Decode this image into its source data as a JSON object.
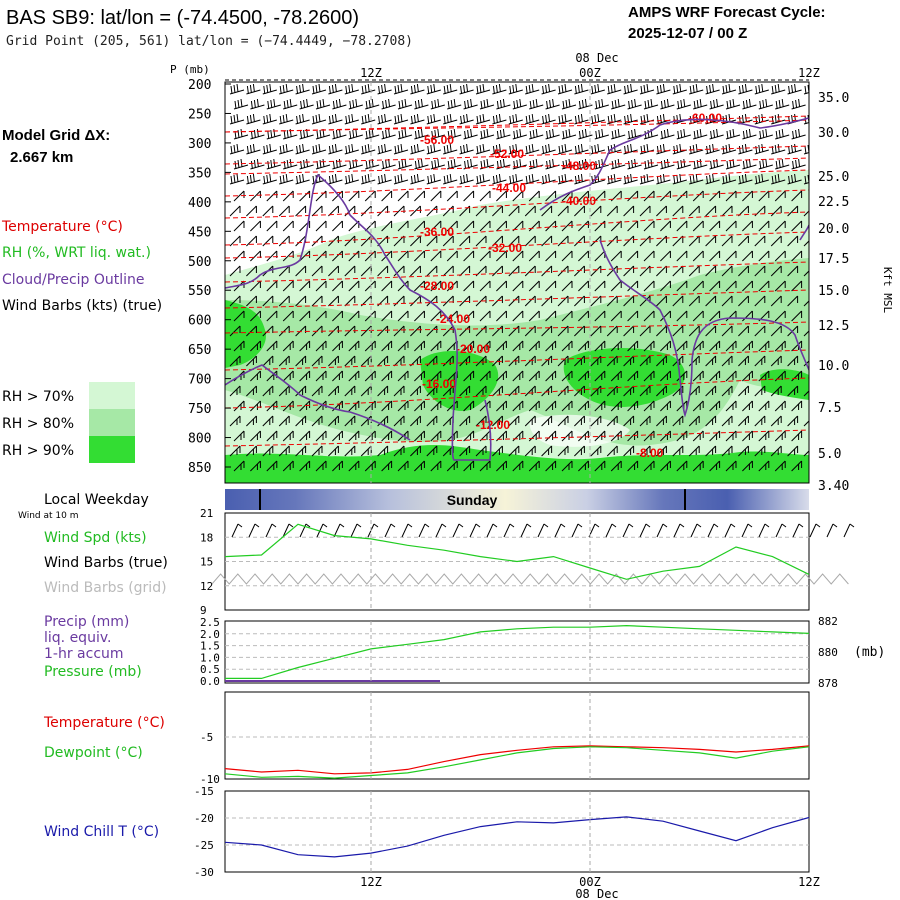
{
  "header": {
    "title": "BAS SB9:  lat/lon = (-74.4500, -78.2600)",
    "grid_point": "Grid Point (205, 561) lat/lon = (−74.4449, −78.2708)",
    "forecast_label": "AMPS WRF Forecast Cycle:",
    "forecast_cycle": "2025-12-07 / 00  Z",
    "model_grid_label": "Model Grid ΔX:",
    "model_grid_value": "2.667 km"
  },
  "legend": {
    "temperature": "Temperature (°C)",
    "rh": "RH (%, WRT liq. wat.)",
    "cloud": "Cloud/Precip Outline",
    "wind": "Wind Barbs (kts) (true)",
    "rh70": "RH > 70%",
    "rh80": "RH > 80%",
    "rh90": "RH > 90%"
  },
  "colors": {
    "temperature": "#ff0000",
    "cloud": "#6a3aa0",
    "rh70": "#d4f7d4",
    "rh80": "#a6e8a6",
    "rh90": "#33dd33",
    "green_line": "#22cc22",
    "wind_chill": "#1a1aaa"
  },
  "time_axis": {
    "top_labels": [
      "12Z",
      "00Z",
      "12Z"
    ],
    "date_label": "08 Dec",
    "bottom_labels": [
      "12Z",
      "00Z",
      "12Z"
    ]
  },
  "weekday": {
    "label": "Local Weekday",
    "sub": "Wind at 10 m",
    "day": "Sunday"
  },
  "chart_data": [
    {
      "type": "line",
      "name": "cross-section",
      "ylabel": "P (mb)",
      "ylabel_right": "Kft MSL",
      "pressure_ticks": [
        "200",
        "250",
        "300",
        "350",
        "400",
        "450",
        "500",
        "550",
        "600",
        "650",
        "700",
        "750",
        "800",
        "850"
      ],
      "height_ticks": [
        "35.0",
        "30.0",
        "25.0",
        "22.5",
        "20.0",
        "17.5",
        "15.0",
        "12.5",
        "10.0",
        "7.5",
        "5.0",
        "3.40"
      ],
      "isotherm_labels": [
        "-60.00",
        "-56.00",
        "-52.00",
        "-48.00",
        "-44.00",
        "-40.00",
        "-36.00",
        "-32.00",
        "-28.00",
        "-24.00",
        "-20.00",
        "-16.00",
        "-12.00",
        "-8.00"
      ]
    },
    {
      "type": "line",
      "name": "wind-panel",
      "labels": [
        "Wind Spd (kts)",
        "Wind Barbs (true)",
        "Wind Barbs (grid)"
      ],
      "y_ticks": [
        "21",
        "18",
        "15",
        "12",
        "9"
      ],
      "ylim": [
        9,
        21
      ],
      "x": [
        0,
        3,
        6,
        9,
        12,
        15,
        18,
        21,
        24,
        27,
        30,
        33,
        36,
        39,
        42,
        45,
        48
      ],
      "values": [
        15.6,
        15.8,
        19.6,
        18.2,
        17.8,
        17.0,
        16.4,
        15.6,
        15.0,
        15.6,
        14.2,
        12.8,
        13.8,
        14.4,
        16.8,
        15.6,
        13.4
      ]
    },
    {
      "type": "line",
      "name": "precip-pressure-panel",
      "labels": [
        "Precip (mm)",
        "liq. equiv.",
        "1-hr accum",
        "Pressure (mb)"
      ],
      "left_ticks": [
        "2.5",
        "2.0",
        "1.5",
        "1.0",
        "0.5",
        "0.0"
      ],
      "right_ticks": [
        "882",
        "880",
        "878"
      ],
      "right_unit": "(mb)",
      "ylim": [
        878,
        882
      ],
      "x": [
        0,
        3,
        6,
        9,
        12,
        15,
        18,
        21,
        24,
        27,
        30,
        33,
        36,
        39,
        42,
        45,
        48
      ],
      "series": [
        {
          "values": [
            878.3,
            878.3,
            879.0,
            879.6,
            880.2,
            880.5,
            880.8,
            881.3,
            881.5,
            881.6,
            881.6,
            881.7,
            881.6,
            881.5,
            881.4,
            881.3,
            881.2
          ]
        }
      ]
    },
    {
      "type": "line",
      "name": "temperature-panel",
      "labels": [
        "Temperature (°C)",
        "Dewpoint (°C)"
      ],
      "y_ticks": [
        "-5",
        "-10"
      ],
      "ylim": [
        -10,
        0
      ],
      "x": [
        0,
        3,
        6,
        9,
        12,
        15,
        18,
        21,
        24,
        27,
        30,
        33,
        36,
        39,
        42,
        45,
        48
      ],
      "series": [
        {
          "values": [
            -8.8,
            -9.2,
            -9.0,
            -9.4,
            -9.3,
            -8.9,
            -8.0,
            -7.2,
            -6.7,
            -6.3,
            -6.2,
            -6.3,
            -6.4,
            -6.6,
            -6.9,
            -6.6,
            -6.2
          ]
        },
        {
          "values": [
            -9.4,
            -9.8,
            -9.7,
            -9.9,
            -9.6,
            -9.3,
            -8.6,
            -7.8,
            -7.0,
            -6.5,
            -6.3,
            -6.4,
            -6.7,
            -7.0,
            -7.6,
            -6.8,
            -6.3
          ]
        }
      ]
    },
    {
      "type": "line",
      "name": "wind-chill-panel",
      "labels": [
        "Wind Chill T (°C)"
      ],
      "y_ticks": [
        "-15",
        "-20",
        "-25",
        "-30"
      ],
      "ylim": [
        -30,
        -15
      ],
      "x": [
        0,
        3,
        6,
        9,
        12,
        15,
        18,
        21,
        24,
        27,
        30,
        33,
        36,
        39,
        42,
        45,
        48
      ],
      "values": [
        -24.5,
        -25.0,
        -26.8,
        -27.2,
        -26.5,
        -25.2,
        -23.2,
        -21.6,
        -20.7,
        -20.9,
        -20.3,
        -19.8,
        -20.6,
        -22.4,
        -24.2,
        -21.8,
        -19.9
      ]
    }
  ]
}
